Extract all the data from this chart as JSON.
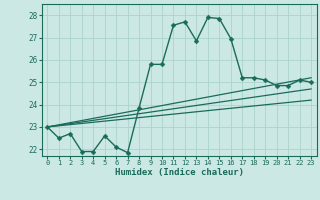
{
  "title": "",
  "xlabel": "Humidex (Indice chaleur)",
  "ylabel": "",
  "bg_color": "#cce8e4",
  "grid_color": "#aad4cc",
  "line_color": "#1a6b5a",
  "xlim": [
    -0.5,
    23.5
  ],
  "ylim": [
    21.7,
    28.5
  ],
  "yticks": [
    22,
    23,
    24,
    25,
    26,
    27,
    28
  ],
  "xticks": [
    0,
    1,
    2,
    3,
    4,
    5,
    6,
    7,
    8,
    9,
    10,
    11,
    12,
    13,
    14,
    15,
    16,
    17,
    18,
    19,
    20,
    21,
    22,
    23
  ],
  "series": [
    {
      "x": [
        0,
        1,
        2,
        3,
        4,
        5,
        6,
        7,
        8,
        9,
        10,
        11,
        12,
        13,
        14,
        15,
        16,
        17,
        18,
        19,
        20,
        21,
        22,
        23
      ],
      "y": [
        23.0,
        22.5,
        22.7,
        21.9,
        21.9,
        22.6,
        22.1,
        21.85,
        23.85,
        25.8,
        25.8,
        27.55,
        27.7,
        26.85,
        27.9,
        27.85,
        26.95,
        25.2,
        25.2,
        25.1,
        24.85,
        24.85,
        25.1,
        25.0
      ],
      "marker": "D",
      "markersize": 2.5,
      "linewidth": 1.0
    },
    {
      "x": [
        0,
        23
      ],
      "y": [
        23.0,
        25.2
      ],
      "marker": null,
      "markersize": 0,
      "linewidth": 0.9
    },
    {
      "x": [
        0,
        23
      ],
      "y": [
        23.0,
        24.7
      ],
      "marker": null,
      "markersize": 0,
      "linewidth": 0.9
    },
    {
      "x": [
        0,
        23
      ],
      "y": [
        23.0,
        24.2
      ],
      "marker": null,
      "markersize": 0,
      "linewidth": 0.9
    }
  ]
}
